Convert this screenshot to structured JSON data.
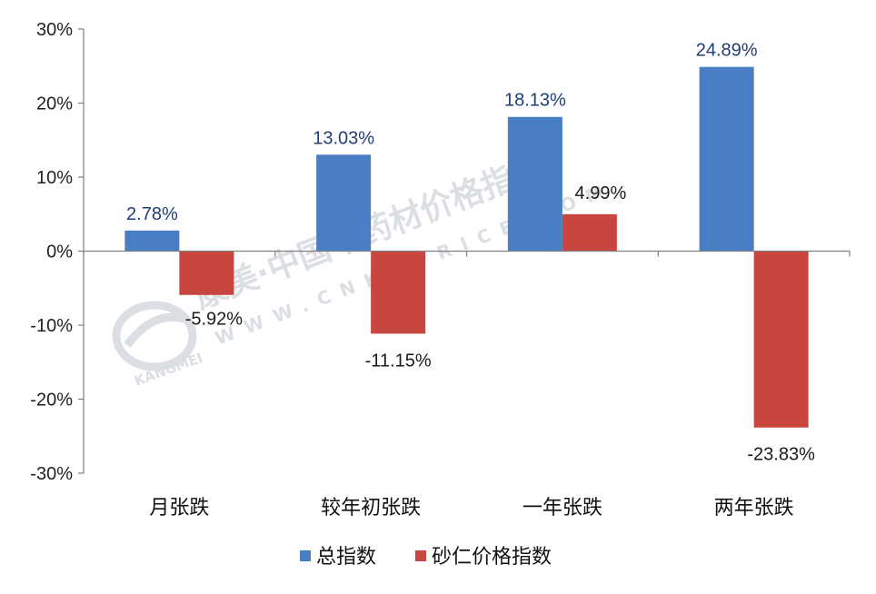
{
  "chart_data": {
    "type": "bar",
    "categories": [
      "月张跌",
      "较年初张跌",
      "一年张跌",
      "两年张跌"
    ],
    "series": [
      {
        "name": "总指数",
        "values": [
          2.78,
          13.03,
          18.13,
          24.89
        ],
        "labels": [
          "2.78%",
          "13.03%",
          "18.13%",
          "24.89%"
        ],
        "color": "#4a7ec4"
      },
      {
        "name": "砂仁价格指数",
        "values": [
          -5.92,
          -11.15,
          4.99,
          -23.83
        ],
        "labels": [
          "-5.92%",
          "-11.15%",
          "4.99%",
          "-23.83%"
        ],
        "color": "#c94540"
      }
    ],
    "ylim": [
      -30,
      30
    ],
    "yticks": [
      30,
      20,
      10,
      0,
      -10,
      -20,
      -30
    ],
    "ytick_labels": [
      "30%",
      "20%",
      "10%",
      "0%",
      "-10%",
      "-20%",
      "-30%"
    ],
    "legend_position": "bottom",
    "grid": false
  },
  "watermark": {
    "line1": "康美·中国中药材价格指数",
    "line2": "WWW.CNKMPRICE.COM",
    "brand": "KANGMEI"
  }
}
